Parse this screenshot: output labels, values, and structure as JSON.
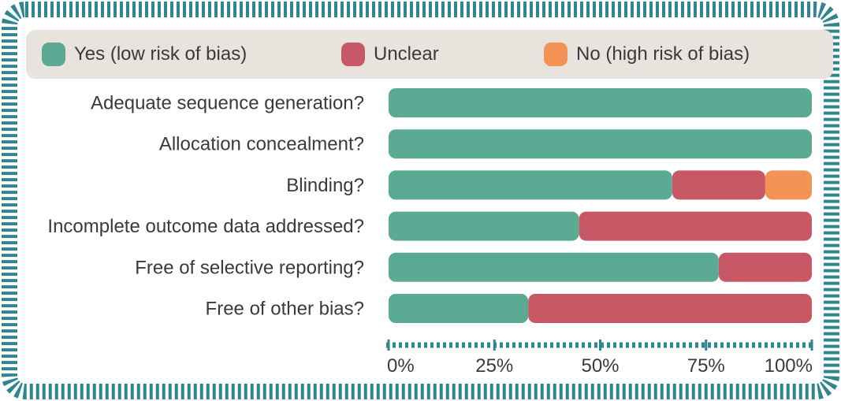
{
  "colors": {
    "yes": "#5aaa94",
    "unclear": "#c95866",
    "no": "#f39456",
    "frame": "#2f8590",
    "legend_bg": "#e8e3dc",
    "text": "#3a3a3a"
  },
  "legend": {
    "items": [
      {
        "label": "Yes (low risk of bias)",
        "color": "#5aaa94"
      },
      {
        "label": "Unclear",
        "color": "#c95866"
      },
      {
        "label": "No (high risk of bias)",
        "color": "#f39456"
      }
    ]
  },
  "chart_data": {
    "type": "bar",
    "orientation": "horizontal",
    "stacked": true,
    "categories": [
      "Adequate sequence generation?",
      "Allocation concealment?",
      "Blinding?",
      "Incomplete outcome data addressed?",
      "Free of selective reporting?",
      "Free of other bias?"
    ],
    "series": [
      {
        "name": "Yes (low risk of bias)",
        "values": [
          100,
          100,
          67,
          45,
          78,
          33
        ]
      },
      {
        "name": "Unclear",
        "values": [
          0,
          0,
          22,
          55,
          22,
          67
        ]
      },
      {
        "name": "No (high risk of bias)",
        "values": [
          0,
          0,
          11,
          0,
          0,
          0
        ]
      }
    ],
    "xticks": [
      "0%",
      "25%",
      "50%",
      "75%",
      "100%"
    ],
    "xlim": [
      0,
      100
    ],
    "unit": "%",
    "legend_position": "top",
    "grid": false
  }
}
